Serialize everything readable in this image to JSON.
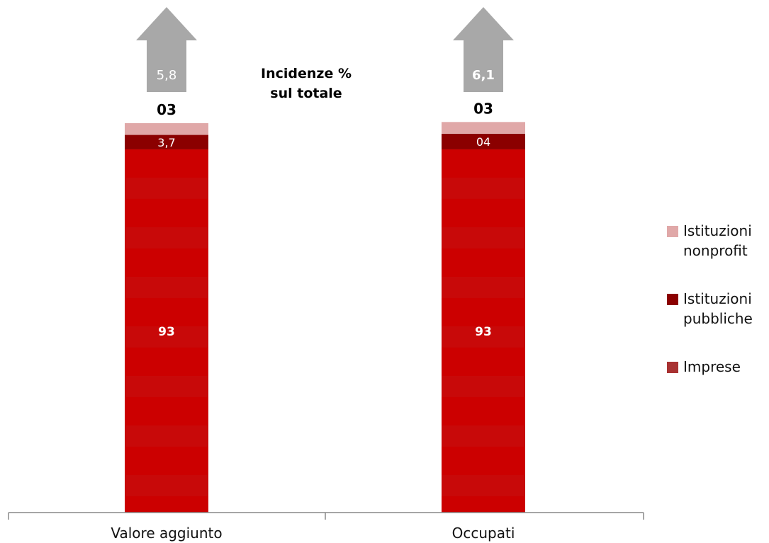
{
  "chart_data": {
    "type": "bar",
    "stacked": true,
    "categories": [
      "Valore aggiunto",
      "Occupati"
    ],
    "series": [
      {
        "name": "Imprese",
        "values": [
          93,
          93
        ],
        "labels": [
          "93",
          "93"
        ],
        "color": "#cc0000"
      },
      {
        "name": "Istituzioni pubbliche",
        "values": [
          3.7,
          4
        ],
        "labels": [
          "3,7",
          "04"
        ],
        "color": "#8b0000"
      },
      {
        "name": "Istituzioni nonprofit",
        "values": [
          3,
          3
        ],
        "labels": [
          "03",
          "03"
        ],
        "color": "#e0a8a8"
      }
    ],
    "arrows": [
      {
        "category": "Valore aggiunto",
        "value": 5.8,
        "label": "5,8"
      },
      {
        "category": "Occupati",
        "value": 6.1,
        "label": "6,1"
      }
    ],
    "annotation": "Incidenze %\nsul totale",
    "legend": {
      "position": "right",
      "items": [
        {
          "label": "Istituzioni\nnonprofit",
          "color": "#e0a8a8"
        },
        {
          "label": "Istituzioni\npubbliche",
          "color": "#8b0000"
        },
        {
          "label": "Imprese",
          "color": "#a83232"
        }
      ]
    },
    "ylim": [
      0,
      100
    ],
    "grid": false
  }
}
